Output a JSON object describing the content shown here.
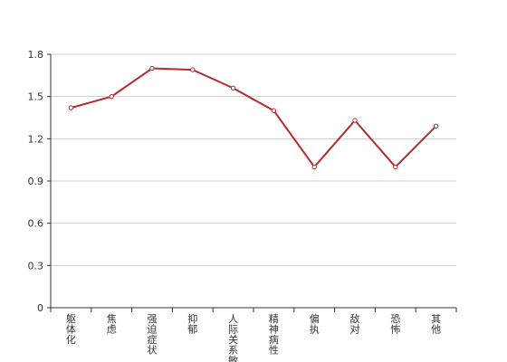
{
  "chart_data": {
    "type": "line",
    "title": "",
    "xlabel": "",
    "ylabel": "",
    "categories": [
      "躯体化",
      "焦虑",
      "强迫症状",
      "抑郁",
      "人际关系敏感",
      "精神病性",
      "偏执",
      "敌对",
      "恐怖",
      "其他"
    ],
    "series": [
      {
        "values": [
          1.42,
          1.5,
          1.7,
          1.69,
          1.56,
          1.4,
          1.0,
          1.33,
          1.0,
          1.29
        ]
      }
    ],
    "ylim": [
      0,
      1.8
    ],
    "yticks": [
      "0",
      "0.3",
      "0.6",
      "0.9",
      "1.2",
      "1.5",
      "1.8"
    ],
    "grid": true,
    "line_color": "#b52a2a"
  }
}
